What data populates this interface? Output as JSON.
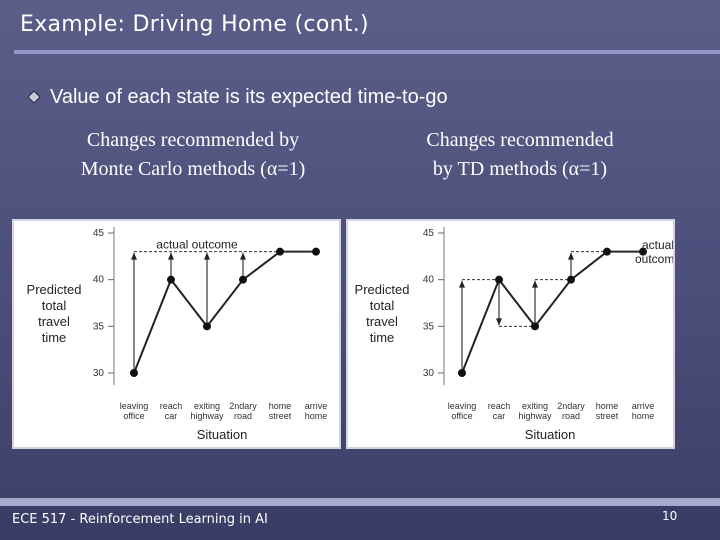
{
  "slide": {
    "title": "Example: Driving Home (cont.)",
    "bullet": "Value of each state is its expected time-to-go",
    "caption_left_line1": "Changes recommended by",
    "caption_left_line2": "Monte Carlo methods (α=1)",
    "caption_right_line1": "Changes recommended",
    "caption_right_line2": "by TD methods (α=1)",
    "footer": "ECE 517 - Reinforcement Learning in AI",
    "page_number": "10"
  },
  "chart_data": [
    {
      "type": "line",
      "x": [
        "leaving office",
        "reach car",
        "exiting highway",
        "2ndary road",
        "home street",
        "arrive home"
      ],
      "x_tick_line1": [
        "leaving",
        "reach",
        "exiting",
        "2ndary",
        "home",
        "arrive"
      ],
      "x_tick_line2": [
        "office",
        "car",
        "highway",
        "road",
        "street",
        "home"
      ],
      "values": [
        30,
        40,
        35,
        40,
        43,
        43
      ],
      "yticks": [
        30,
        35,
        40,
        45
      ],
      "ylim": [
        30,
        45
      ],
      "xlabel": "Situation",
      "ylabel_lines": [
        "Predicted",
        "total",
        "travel",
        "time"
      ],
      "annotation": "actual outcome",
      "target_line": 43
    },
    {
      "type": "line",
      "x": [
        "leaving office",
        "reach car",
        "exiting highway",
        "2ndary road",
        "home street",
        "arrive home"
      ],
      "x_tick_line1": [
        "leaving",
        "reach",
        "exiting",
        "2ndary",
        "home",
        "arrive"
      ],
      "x_tick_line2": [
        "office",
        "car",
        "highway",
        "road",
        "street",
        "home"
      ],
      "values": [
        30,
        40,
        35,
        40,
        43,
        43
      ],
      "yticks": [
        30,
        35,
        40,
        45
      ],
      "ylim": [
        30,
        45
      ],
      "xlabel": "Situation",
      "ylabel_lines": [
        "Predicted",
        "total",
        "travel",
        "time"
      ],
      "annotation_lines": [
        "actual",
        "outcome"
      ]
    }
  ]
}
